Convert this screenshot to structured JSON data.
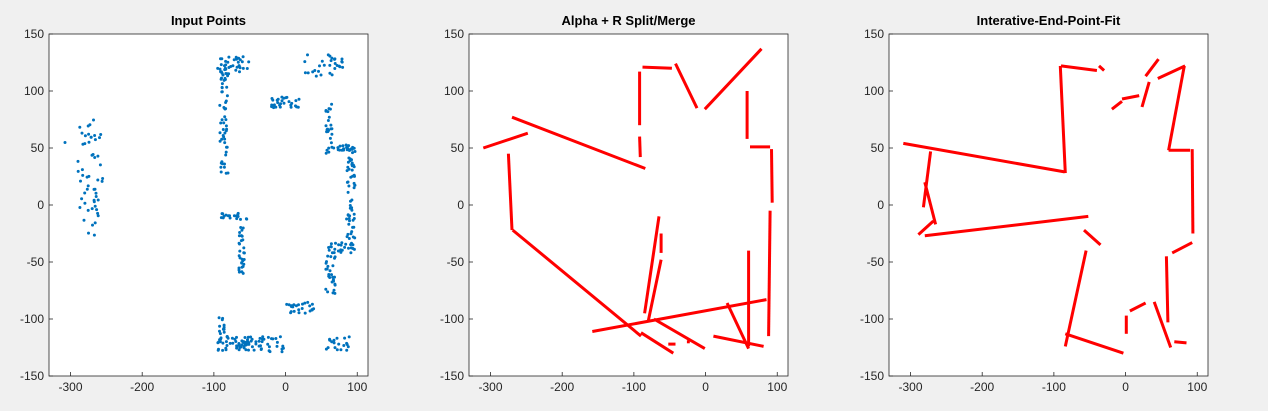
{
  "chart_data": [
    {
      "type": "scatter",
      "title": "Input Points",
      "xlim": [
        -330,
        115
      ],
      "ylim": [
        -150,
        150
      ],
      "xticks": [
        -300,
        -200,
        -100,
        0,
        100
      ],
      "yticks": [
        -150,
        -100,
        -50,
        0,
        50,
        100,
        150
      ],
      "grid": false,
      "color": "#0072BD",
      "clusters": [
        {
          "x_range": [
            -290,
            -255
          ],
          "y_range": [
            -27,
            75
          ],
          "count": 55,
          "label": "left-column"
        },
        {
          "x_range": [
            -310,
            -300
          ],
          "y_range": [
            50,
            56
          ],
          "count": 1,
          "label": "left-outlier"
        },
        {
          "x_range": [
            -95,
            -50
          ],
          "y_range": [
            115,
            130
          ],
          "count": 35,
          "label": "top-left-row"
        },
        {
          "x_range": [
            -92,
            -80
          ],
          "y_range": [
            25,
            120
          ],
          "count": 55,
          "label": "left-wall"
        },
        {
          "x_range": [
            25,
            80
          ],
          "y_range": [
            113,
            132
          ],
          "count": 30,
          "label": "top-right-row"
        },
        {
          "x_range": [
            -20,
            22
          ],
          "y_range": [
            85,
            95
          ],
          "count": 30,
          "label": "center-top"
        },
        {
          "x_range": [
            55,
            65
          ],
          "y_range": [
            45,
            90
          ],
          "count": 25,
          "label": "right-upper-wall"
        },
        {
          "x_range": [
            60,
            95
          ],
          "y_range": [
            48,
            53
          ],
          "count": 20,
          "label": "right-shelf"
        },
        {
          "x_range": [
            85,
            97
          ],
          "y_range": [
            -40,
            50
          ],
          "count": 60,
          "label": "far-right-wall"
        },
        {
          "x_range": [
            55,
            70
          ],
          "y_range": [
            -80,
            -35
          ],
          "count": 30,
          "label": "right-lower-wall"
        },
        {
          "x_range": [
            60,
            95
          ],
          "y_range": [
            -42,
            -32
          ],
          "count": 20,
          "label": "right-lower-shelf"
        },
        {
          "x_range": [
            -90,
            -50
          ],
          "y_range": [
            -13,
            -7
          ],
          "count": 18,
          "label": "center-shelf"
        },
        {
          "x_range": [
            -65,
            -57
          ],
          "y_range": [
            -60,
            -15
          ],
          "count": 30,
          "label": "center-wall"
        },
        {
          "x_range": [
            0,
            40
          ],
          "y_range": [
            -95,
            -85
          ],
          "count": 25,
          "label": "lower-center"
        },
        {
          "x_range": [
            -95,
            -30
          ],
          "y_range": [
            -128,
            -115
          ],
          "count": 70,
          "label": "bottom-row"
        },
        {
          "x_range": [
            -93,
            -85
          ],
          "y_range": [
            -120,
            -95
          ],
          "count": 12,
          "label": "bottom-left-corner"
        },
        {
          "x_range": [
            -25,
            5
          ],
          "y_range": [
            -130,
            -115
          ],
          "count": 15,
          "label": "bottom-center"
        },
        {
          "x_range": [
            50,
            90
          ],
          "y_range": [
            -128,
            -115
          ],
          "count": 20,
          "label": "bottom-right"
        }
      ]
    },
    {
      "type": "line",
      "title": "Alpha + R Split/Merge",
      "xlim": [
        -330,
        115
      ],
      "ylim": [
        -150,
        150
      ],
      "xticks": [
        -300,
        -200,
        -100,
        0,
        100
      ],
      "yticks": [
        -150,
        -100,
        -50,
        0,
        50,
        100,
        150
      ],
      "grid": false,
      "color": "#FF0000",
      "segments": [
        [
          -88,
          121,
          -47,
          120
        ],
        [
          -92,
          117,
          -92,
          70
        ],
        [
          -92,
          60,
          -91,
          42
        ],
        [
          -42,
          124,
          -12,
          85
        ],
        [
          -1,
          84,
          78,
          137
        ],
        [
          58,
          100,
          58,
          58
        ],
        [
          62,
          51,
          90,
          51
        ],
        [
          -270,
          77,
          -84,
          32
        ],
        [
          -310,
          50,
          -248,
          63
        ],
        [
          -275,
          45,
          -270,
          -22
        ],
        [
          -269,
          -22,
          -90,
          -115
        ],
        [
          92,
          49,
          93,
          2
        ],
        [
          90,
          -5,
          88,
          -115
        ],
        [
          -65,
          -10,
          -85,
          -95
        ],
        [
          -62,
          -25,
          -62,
          -42
        ],
        [
          -62,
          -48,
          -80,
          -102
        ],
        [
          -158,
          -111,
          85,
          -83
        ],
        [
          -72,
          -100,
          -1,
          -126
        ],
        [
          30,
          -86,
          60,
          -126
        ],
        [
          60,
          -40,
          60,
          -124
        ],
        [
          -90,
          -112,
          -45,
          -130
        ],
        [
          -52,
          -122,
          -42,
          -122
        ],
        [
          11,
          -115,
          81,
          -124
        ],
        [
          -26,
          -120,
          -22,
          -120
        ]
      ]
    },
    {
      "type": "line",
      "title": "Interative-End-Point-Fit",
      "xlim": [
        -330,
        115
      ],
      "ylim": [
        -150,
        150
      ],
      "xticks": [
        -300,
        -200,
        -100,
        0,
        100
      ],
      "yticks": [
        -150,
        -100,
        -50,
        0,
        50,
        100,
        150
      ],
      "grid": false,
      "color": "#FF0000",
      "segments": [
        [
          -310,
          54,
          -85,
          29
        ],
        [
          -91,
          122,
          -84,
          28
        ],
        [
          -90,
          122,
          -40,
          118
        ],
        [
          -37,
          122,
          -30,
          118
        ],
        [
          -19,
          84,
          -5,
          91
        ],
        [
          -5,
          93,
          19,
          96
        ],
        [
          23,
          86,
          33,
          108
        ],
        [
          28,
          113,
          46,
          128
        ],
        [
          45,
          111,
          83,
          122
        ],
        [
          82,
          122,
          60,
          48
        ],
        [
          60,
          48,
          90,
          48
        ],
        [
          93,
          49,
          94,
          -25
        ],
        [
          93,
          -33,
          65,
          -42
        ],
        [
          -272,
          47,
          -282,
          -2
        ],
        [
          -280,
          20,
          -265,
          -17
        ],
        [
          -268,
          -14,
          -289,
          -26
        ],
        [
          -280,
          -27,
          -52,
          -10
        ],
        [
          -58,
          -22,
          -35,
          -35
        ],
        [
          -55,
          -40,
          -84,
          -124
        ],
        [
          -84,
          -113,
          -3,
          -130
        ],
        [
          6,
          -93,
          28,
          -86
        ],
        [
          1,
          -97,
          1,
          -113
        ],
        [
          40,
          -85,
          63,
          -125
        ],
        [
          57,
          -45,
          59,
          -103
        ],
        [
          68,
          -120,
          85,
          -121
        ]
      ]
    }
  ]
}
